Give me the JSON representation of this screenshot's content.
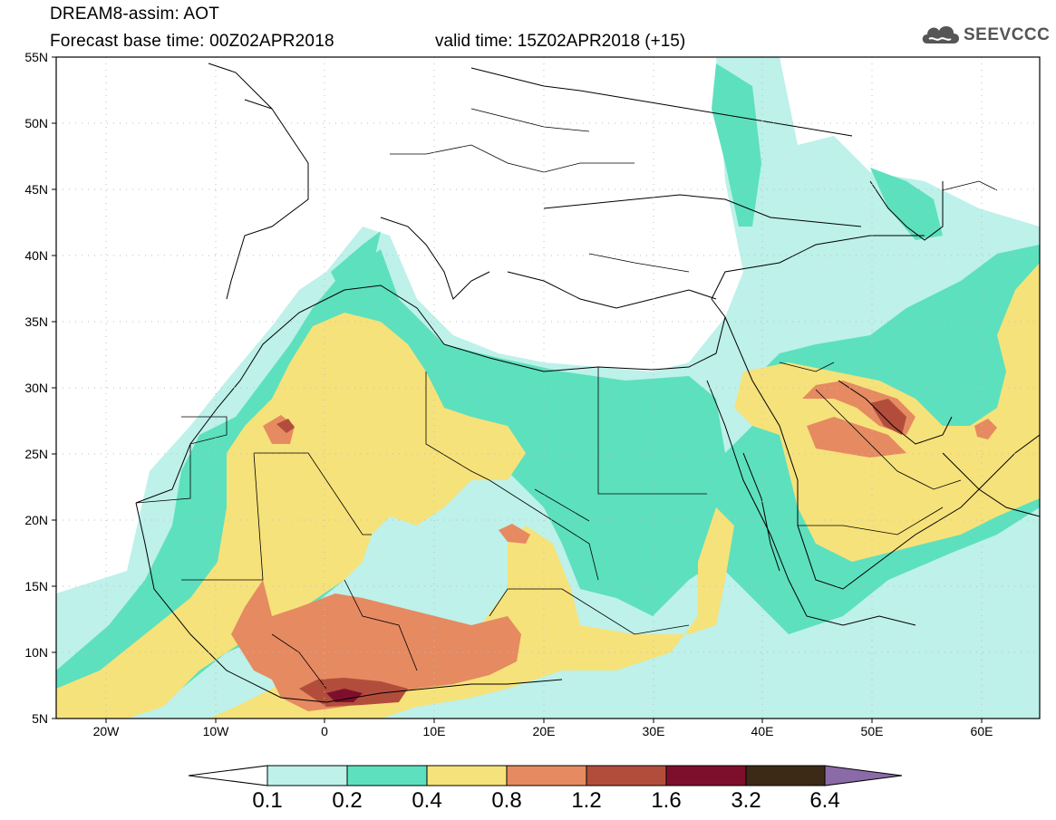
{
  "title": {
    "line1": "DREAM8-assim: AOT",
    "base": "Forecast base time: 00Z02APR2018",
    "valid": "valid time: 15Z02APR2018 (+15)"
  },
  "logo": {
    "text": "SEEVCCC",
    "icon": "cloud-icon"
  },
  "map": {
    "lon_range": [
      -25,
      65
    ],
    "lat_range": [
      5,
      55
    ],
    "lat_ticks": [
      "55N",
      "50N",
      "45N",
      "40N",
      "35N",
      "30N",
      "25N",
      "20N",
      "15N",
      "10N",
      "5N"
    ],
    "lon_ticks": [
      "20W",
      "10W",
      "0",
      "10E",
      "20E",
      "30E",
      "40E",
      "50E",
      "60E"
    ]
  },
  "colorbar": {
    "labels": [
      "0.1",
      "0.2",
      "0.4",
      "0.8",
      "1.2",
      "1.6",
      "3.2",
      "6.4"
    ],
    "colors": [
      "#ffffff",
      "#bdf1ea",
      "#5de0be",
      "#f6e27a",
      "#e68a61",
      "#b24d3c",
      "#7e0f2c",
      "#3d2a16",
      "#8b6aa8"
    ]
  }
}
